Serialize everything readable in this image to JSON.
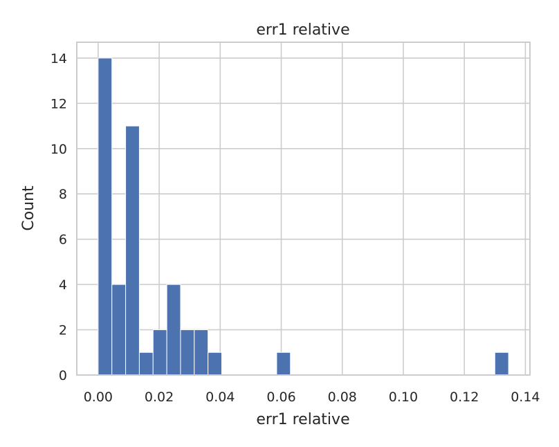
{
  "chart_data": {
    "type": "bar",
    "title": "err1 relative",
    "xlabel": "err1 relative",
    "ylabel": "Count",
    "xlim": [
      -0.007,
      0.1415
    ],
    "ylim": [
      0,
      14.7
    ],
    "xticks": [
      0.0,
      0.02,
      0.04,
      0.06,
      0.08,
      0.1,
      0.12,
      0.14
    ],
    "xtick_labels": [
      "0.00",
      "0.02",
      "0.04",
      "0.06",
      "0.08",
      "0.10",
      "0.12",
      "0.14"
    ],
    "yticks": [
      0,
      2,
      4,
      6,
      8,
      10,
      12,
      14
    ],
    "ytick_labels": [
      "0",
      "2",
      "4",
      "6",
      "8",
      "10",
      "12",
      "14"
    ],
    "grid": true,
    "bar_color": "#4c72b0",
    "bins": [
      {
        "x0": 0.0,
        "x1": 0.0045,
        "count": 14
      },
      {
        "x0": 0.0045,
        "x1": 0.009,
        "count": 4
      },
      {
        "x0": 0.009,
        "x1": 0.0135,
        "count": 11
      },
      {
        "x0": 0.0135,
        "x1": 0.018,
        "count": 1
      },
      {
        "x0": 0.018,
        "x1": 0.0225,
        "count": 2
      },
      {
        "x0": 0.0225,
        "x1": 0.027,
        "count": 4
      },
      {
        "x0": 0.027,
        "x1": 0.0315,
        "count": 2
      },
      {
        "x0": 0.0315,
        "x1": 0.036,
        "count": 2
      },
      {
        "x0": 0.036,
        "x1": 0.0405,
        "count": 1
      },
      {
        "x0": 0.0585,
        "x1": 0.063,
        "count": 1
      },
      {
        "x0": 0.13,
        "x1": 0.1345,
        "count": 1
      }
    ]
  }
}
